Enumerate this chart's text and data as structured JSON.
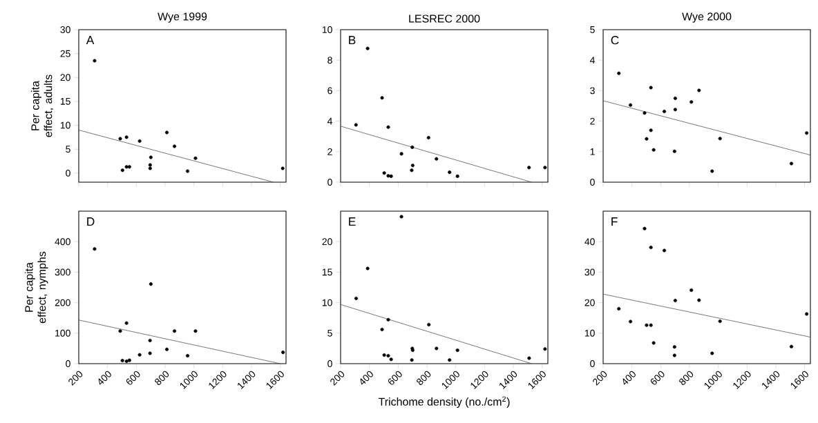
{
  "chart_data": [
    {
      "type": "scatter",
      "title": "Wye 1999",
      "ylabel": "Per capita effect, adults",
      "annotations": [
        "A"
      ],
      "tick_labels": "y",
      "xlim": [
        200,
        1640
      ],
      "ylim": [
        -1.9,
        30
      ],
      "xticks": [
        200,
        400,
        600,
        800,
        1000,
        1200,
        1400,
        1600
      ],
      "yticks": [
        0,
        5,
        10,
        15,
        20,
        25,
        30
      ],
      "series": [
        {
          "marker": "circle",
          "color": "#000000",
          "x": [
            310,
            488,
            504,
            532,
            532,
            552,
            623,
            696,
            696,
            701,
            812,
            865,
            956,
            1011,
            1617
          ],
          "values": [
            23.5,
            7.2,
            0.6,
            7.5,
            1.3,
            1.3,
            6.7,
            1.7,
            1.0,
            3.3,
            8.5,
            5.6,
            0.4,
            3.1,
            1.0
          ]
        },
        {
          "type": "line",
          "marker": "none",
          "color": "#333333",
          "x": [
            200,
            1553
          ],
          "values": [
            9.0,
            -1.9
          ]
        }
      ]
    },
    {
      "type": "scatter",
      "title": "LESREC 2000",
      "annotations": [
        "B"
      ],
      "tick_labels": "y",
      "xlim": [
        200,
        1640
      ],
      "ylim": [
        0,
        10
      ],
      "xticks": [
        200,
        400,
        600,
        800,
        1000,
        1200,
        1400,
        1600
      ],
      "yticks": [
        0,
        2,
        4,
        6,
        8,
        10
      ],
      "series": [
        {
          "marker": "circle",
          "color": "#000000",
          "x": [
            307,
            388,
            488,
            503,
            531,
            531,
            551,
            623,
            694,
            698,
            701,
            811,
            866,
            957,
            1012,
            1509,
            1620
          ],
          "values": [
            3.76,
            8.77,
            5.53,
            0.6,
            3.61,
            0.42,
            0.39,
            1.86,
            0.78,
            2.29,
            1.1,
            2.92,
            1.53,
            0.65,
            0.39,
            0.96,
            0.96
          ]
        },
        {
          "type": "line",
          "marker": "none",
          "color": "#333333",
          "x": [
            200,
            1527
          ],
          "values": [
            3.67,
            0
          ]
        }
      ]
    },
    {
      "type": "scatter",
      "title": "Wye 2000",
      "annotations": [
        "C"
      ],
      "tick_labels": "y",
      "xlim": [
        200,
        1640
      ],
      "ylim": [
        0,
        5
      ],
      "xticks": [
        200,
        400,
        600,
        800,
        1000,
        1200,
        1400,
        1600
      ],
      "yticks": [
        0,
        1,
        2,
        3,
        4,
        5
      ],
      "series": [
        {
          "marker": "circle",
          "color": "#000000",
          "x": [
            309,
            390,
            488,
            532,
            532,
            502,
            551,
            625,
            696,
            701,
            701,
            813,
            866,
            1012,
            957,
            1508,
            1614
          ],
          "values": [
            3.57,
            2.53,
            2.27,
            3.1,
            1.7,
            1.42,
            1.06,
            2.32,
            1.01,
            2.75,
            2.38,
            2.63,
            3.01,
            1.43,
            0.36,
            0.61,
            1.61
          ]
        },
        {
          "type": "line",
          "marker": "none",
          "color": "#333333",
          "x": [
            200,
            1640
          ],
          "values": [
            2.67,
            0.89
          ]
        }
      ]
    },
    {
      "type": "scatter",
      "ylabel": "Per capita effect, nymphs",
      "annotations": [
        "D"
      ],
      "xlim": [
        200,
        1640
      ],
      "ylim": [
        0,
        500
      ],
      "xticks": [
        200,
        400,
        600,
        800,
        1000,
        1200,
        1400,
        1600
      ],
      "yticks": [
        0,
        100,
        200,
        300,
        400
      ],
      "series": [
        {
          "marker": "circle",
          "color": "#000000",
          "x": [
            310,
            488,
            503,
            532,
            532,
            552,
            623,
            695,
            695,
            701,
            812,
            865,
            956,
            1011,
            1619
          ],
          "values": [
            376,
            107,
            10,
            133,
            8,
            11,
            29,
            76,
            34,
            261,
            47,
            107,
            26,
            107,
            37
          ]
        },
        {
          "type": "line",
          "marker": "none",
          "color": "#333333",
          "x": [
            200,
            1600
          ],
          "values": [
            143,
            0
          ]
        }
      ]
    },
    {
      "type": "scatter",
      "xlabel": "Trichome density (no./cm$^{2}$)",
      "annotations": [
        "E"
      ],
      "xlim": [
        200,
        1640
      ],
      "ylim": [
        0,
        25
      ],
      "xticks": [
        200,
        400,
        600,
        800,
        1000,
        1200,
        1400,
        1600
      ],
      "yticks": [
        0,
        5,
        10,
        15,
        20
      ],
      "series": [
        {
          "marker": "circle",
          "color": "#000000",
          "x": [
            308,
            388,
            488,
            503,
            531,
            531,
            551,
            623,
            695,
            698,
            701,
            813,
            866,
            957,
            1012,
            1510,
            1620
          ],
          "values": [
            10.7,
            15.6,
            5.6,
            1.4,
            7.2,
            1.3,
            0.7,
            24.1,
            0.6,
            2.5,
            2.2,
            6.4,
            2.5,
            0.6,
            2.2,
            0.9,
            2.4
          ]
        },
        {
          "type": "line",
          "marker": "none",
          "color": "#333333",
          "x": [
            200,
            1527
          ],
          "values": [
            9.7,
            0
          ]
        }
      ]
    },
    {
      "type": "scatter",
      "annotations": [
        "F"
      ],
      "xlim": [
        200,
        1640
      ],
      "ylim": [
        0,
        50
      ],
      "xticks": [
        200,
        400,
        600,
        800,
        1000,
        1200,
        1400,
        1600
      ],
      "yticks": [
        0,
        10,
        20,
        30,
        40
      ],
      "series": [
        {
          "marker": "circle",
          "color": "#000000",
          "x": [
            309,
            390,
            488,
            502,
            532,
            532,
            551,
            625,
            696,
            696,
            701,
            813,
            866,
            957,
            1012,
            1508,
            1614
          ],
          "values": [
            18.0,
            13.8,
            44.3,
            12.6,
            38.1,
            12.6,
            6.8,
            37.1,
            5.5,
            2.7,
            20.7,
            24.1,
            20.8,
            3.4,
            13.9,
            5.6,
            16.3
          ]
        },
        {
          "type": "line",
          "marker": "none",
          "color": "#333333",
          "x": [
            200,
            1640
          ],
          "values": [
            22.8,
            8.7
          ]
        }
      ]
    }
  ]
}
